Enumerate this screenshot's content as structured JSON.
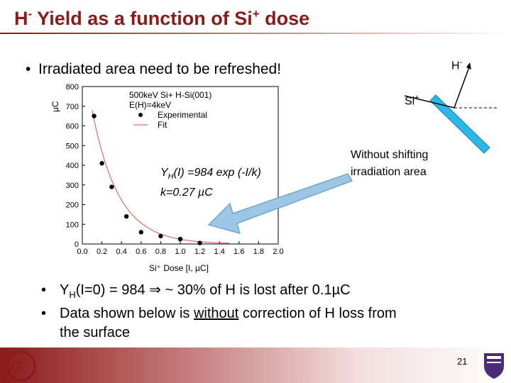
{
  "slide": {
    "title_main": "H",
    "title_sup": "-",
    "title_rest": " Yield as a function of Si",
    "title_sup2": "+",
    "title_end": " dose",
    "bullet_top": "Irradiated area need to be refreshed!",
    "bullet_char": "•",
    "bottom_bullets": {
      "b1_prefix": "Y",
      "b1_sub": "H",
      "b1_rest": "(I=0) = 984  ",
      "b1_arrow": "⇒",
      "b1_tail": " ~ 30% of H is lost after 0.1µC",
      "b2_start": "Data shown below is ",
      "b2_underlined": "without",
      "b2_end": " correction of H loss from",
      "b3": "the surface"
    },
    "page_number": "21",
    "note_line1": "Without shifting",
    "note_line2": "irradiation area",
    "diagram": {
      "h_label": "H",
      "h_sup": "-",
      "si_label": "Si",
      "si_sup": "+",
      "beam_color": "#29b8e8"
    },
    "colors": {
      "title": "#8b1a1a",
      "fit_curve": "#e05050",
      "arrow": "#8fbfe0"
    }
  },
  "chart_data": {
    "type": "scatter",
    "xlabel": "Si⁺ Dose [I, µC]",
    "ylabel": "µC",
    "xlim": [
      0,
      2.0
    ],
    "ylim": [
      0,
      800
    ],
    "x_ticks": [
      "0.0",
      "0.2",
      "0.4",
      "0.6",
      "0.8",
      "1.0",
      "1.2",
      "1.4",
      "1.6",
      "1.8",
      "2.0"
    ],
    "y_ticks": [
      "0",
      "100",
      "200",
      "300",
      "400",
      "500",
      "600",
      "700",
      "800"
    ],
    "legend_title": [
      "500keV Si+ H-Si(001)",
      "E(H)=4keV"
    ],
    "legend_entries": [
      "Experimental",
      "Fit"
    ],
    "annotation_line1": "Y",
    "annotation_sub": "H",
    "annotation_line1_rest": "(I) =984 exp (-I/k)",
    "annotation_line2": "k=0.27 µC",
    "series": [
      {
        "name": "Experimental",
        "type": "scatter",
        "x": [
          0.12,
          0.2,
          0.3,
          0.45,
          0.6,
          0.8,
          1.0,
          1.2
        ],
        "y": [
          650,
          410,
          290,
          140,
          60,
          40,
          25,
          5
        ]
      },
      {
        "name": "Fit",
        "type": "line",
        "formula": "984*exp(-x/0.27)"
      }
    ],
    "grid": false,
    "legend_position": "top-right"
  }
}
